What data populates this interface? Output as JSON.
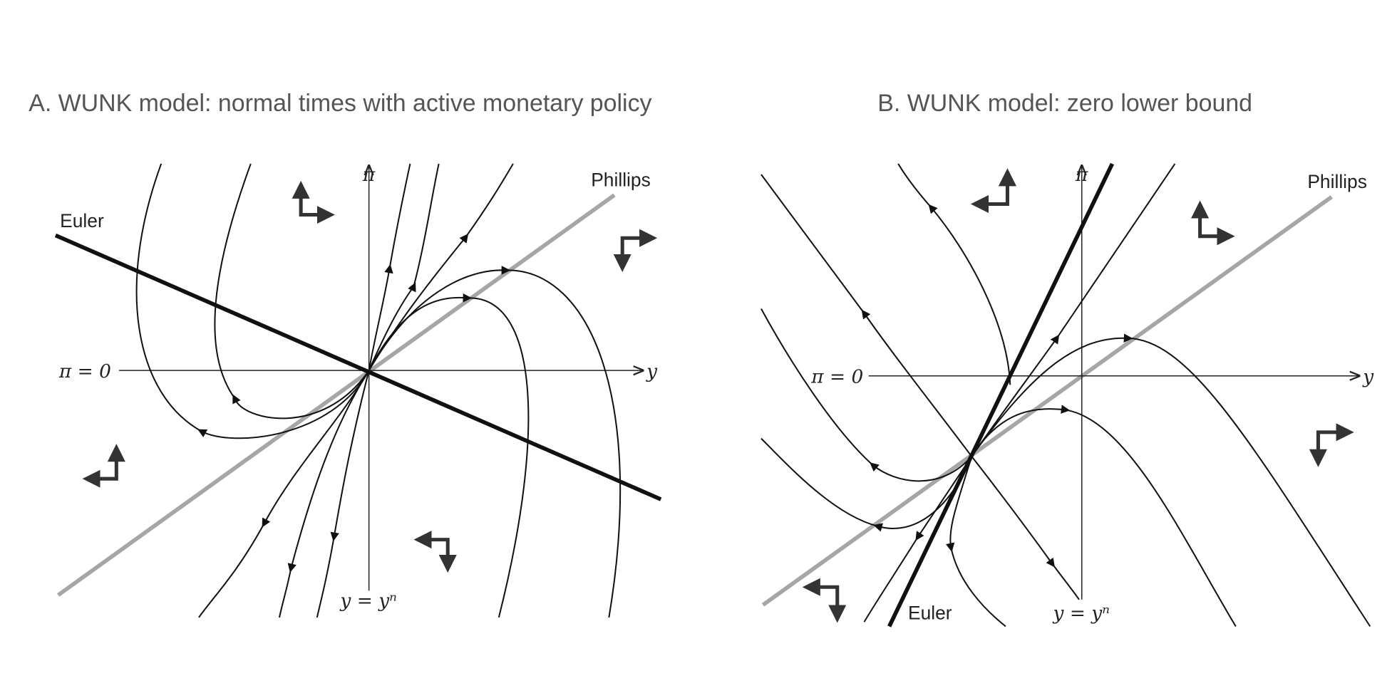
{
  "panels": [
    {
      "title": "A. WUNK model: normal times with active monetary policy",
      "labels": {
        "euler": "Euler",
        "phillips": "Phillips",
        "pi": "π",
        "pi_zero": "π = 0",
        "y": "y",
        "y_natural": "y = yⁿ"
      }
    },
    {
      "title": "B. WUNK model: zero lower bound",
      "labels": {
        "euler": "Euler",
        "phillips": "Phillips",
        "pi": "π",
        "pi_zero": "π = 0",
        "y": "y",
        "y_natural": "y = yⁿ"
      }
    }
  ]
}
